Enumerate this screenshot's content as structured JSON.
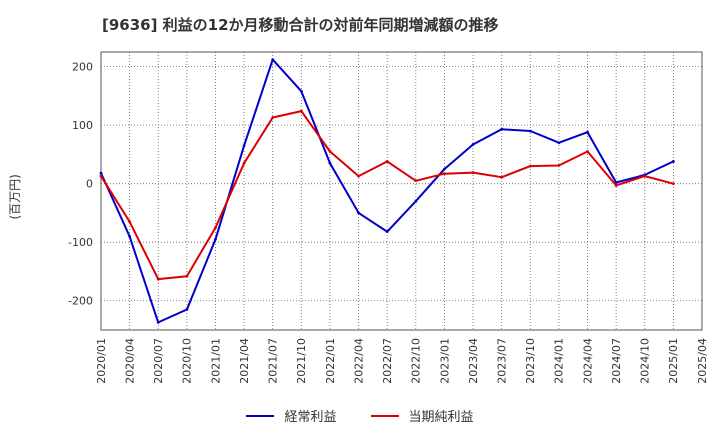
{
  "chart_data": {
    "type": "line",
    "title": "[9636]  利益の12か月移動合計の対前年同期増減額の推移",
    "xlabel": "",
    "ylabel": "(百万円)",
    "ylim": [
      -250,
      225
    ],
    "yticks": [
      -200,
      -100,
      0,
      100,
      200
    ],
    "grid": true,
    "legend_position": "bottom",
    "x": [
      "2020/01",
      "2020/04",
      "2020/07",
      "2020/10",
      "2021/01",
      "2021/04",
      "2021/07",
      "2021/10",
      "2022/01",
      "2022/04",
      "2022/07",
      "2022/10",
      "2023/01",
      "2023/04",
      "2023/07",
      "2023/10",
      "2024/01",
      "2024/04",
      "2024/07",
      "2024/10",
      "2025/01",
      "2025/04"
    ],
    "series": [
      {
        "name": "経常利益",
        "color": "#0000cc",
        "values": [
          18,
          -90,
          -237,
          -215,
          -95,
          65,
          212,
          158,
          35,
          -50,
          -82,
          -30,
          25,
          67,
          93,
          90,
          70,
          88,
          2,
          15,
          38,
          null
        ]
      },
      {
        "name": "当期純利益",
        "color": "#dd0000",
        "values": [
          13,
          -65,
          -163,
          -158,
          -75,
          35,
          113,
          124,
          55,
          13,
          38,
          5,
          17,
          19,
          11,
          30,
          31,
          55,
          -3,
          13,
          0,
          null
        ]
      }
    ]
  }
}
